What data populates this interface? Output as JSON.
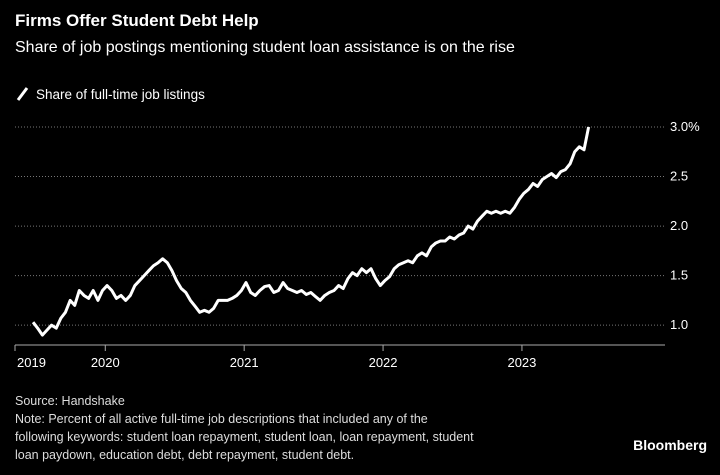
{
  "chart_data": {
    "type": "line",
    "title": "Firms Offer Student Debt Help",
    "subtitle": "Share of job postings mentioning student loan assistance is on the rise",
    "source": "Source: Handshake",
    "note": [
      "Note: Percent of all active full-time job descriptions that included any of the",
      "following keywords: student loan repayment, student loan, loan repayment, student",
      "loan paydown, education debt, debt repayment, student debt."
    ],
    "brand": "Bloomberg",
    "x": [
      2019.48,
      2019.513,
      2019.547,
      2019.58,
      2019.613,
      2019.647,
      2019.68,
      2019.713,
      2019.747,
      2019.78,
      2019.813,
      2019.847,
      2019.88,
      2019.913,
      2019.947,
      2019.98,
      2020.013,
      2020.047,
      2020.08,
      2020.113,
      2020.147,
      2020.18,
      2020.213,
      2020.247,
      2020.28,
      2020.313,
      2020.347,
      2020.38,
      2020.413,
      2020.447,
      2020.48,
      2020.513,
      2020.547,
      2020.58,
      2020.613,
      2020.647,
      2020.68,
      2020.713,
      2020.747,
      2020.78,
      2020.813,
      2020.847,
      2020.88,
      2020.913,
      2020.947,
      2020.98,
      2021.013,
      2021.047,
      2021.08,
      2021.113,
      2021.147,
      2021.18,
      2021.213,
      2021.247,
      2021.28,
      2021.313,
      2021.347,
      2021.38,
      2021.413,
      2021.447,
      2021.48,
      2021.513,
      2021.547,
      2021.58,
      2021.613,
      2021.647,
      2021.68,
      2021.713,
      2021.747,
      2021.78,
      2021.813,
      2021.847,
      2021.88,
      2021.913,
      2021.947,
      2021.98,
      2022.013,
      2022.047,
      2022.08,
      2022.113,
      2022.147,
      2022.18,
      2022.213,
      2022.247,
      2022.28,
      2022.313,
      2022.347,
      2022.38,
      2022.413,
      2022.447,
      2022.48,
      2022.513,
      2022.547,
      2022.58,
      2022.613,
      2022.647,
      2022.68,
      2022.713,
      2022.747,
      2022.78,
      2022.813,
      2022.847,
      2022.88,
      2022.913,
      2022.947,
      2022.98,
      2023.013,
      2023.047,
      2023.08,
      2023.113,
      2023.147,
      2023.18,
      2023.213,
      2023.247,
      2023.28,
      2023.313,
      2023.347,
      2023.38,
      2023.413,
      2023.447,
      2023.48
    ],
    "series": [
      {
        "name": "Share of full-time job listings",
        "color": "#ffffff",
        "values": [
          1.03,
          0.97,
          0.9,
          0.95,
          1.0,
          0.97,
          1.07,
          1.13,
          1.25,
          1.2,
          1.35,
          1.3,
          1.27,
          1.35,
          1.25,
          1.35,
          1.4,
          1.35,
          1.27,
          1.3,
          1.25,
          1.3,
          1.4,
          1.45,
          1.5,
          1.55,
          1.6,
          1.63,
          1.67,
          1.63,
          1.55,
          1.45,
          1.37,
          1.33,
          1.25,
          1.19,
          1.13,
          1.15,
          1.13,
          1.17,
          1.25,
          1.25,
          1.25,
          1.27,
          1.3,
          1.35,
          1.43,
          1.33,
          1.3,
          1.35,
          1.39,
          1.4,
          1.33,
          1.35,
          1.43,
          1.37,
          1.35,
          1.33,
          1.35,
          1.31,
          1.33,
          1.29,
          1.25,
          1.3,
          1.33,
          1.35,
          1.4,
          1.37,
          1.47,
          1.53,
          1.5,
          1.57,
          1.53,
          1.57,
          1.47,
          1.4,
          1.45,
          1.49,
          1.57,
          1.61,
          1.63,
          1.65,
          1.63,
          1.7,
          1.73,
          1.7,
          1.79,
          1.83,
          1.85,
          1.85,
          1.89,
          1.87,
          1.91,
          1.93,
          2.0,
          1.97,
          2.05,
          2.1,
          2.15,
          2.13,
          2.15,
          2.13,
          2.15,
          2.13,
          2.19,
          2.27,
          2.33,
          2.37,
          2.43,
          2.4,
          2.47,
          2.5,
          2.53,
          2.49,
          2.55,
          2.57,
          2.63,
          2.75,
          2.8,
          2.77,
          3.0
        ]
      }
    ],
    "xlim": [
      2019.35,
      2023.85
    ],
    "xticks": [
      {
        "value": 2019.35,
        "label": "2019"
      },
      2020,
      2021,
      2022,
      2023
    ],
    "ylim": [
      0.8,
      3.0
    ],
    "yticks": [
      {
        "value": 1,
        "label": "1.0"
      },
      1.5,
      {
        "value": 2,
        "label": "2.0"
      },
      2.5,
      {
        "value": 3,
        "label": "3.0%"
      }
    ],
    "grid": true
  }
}
